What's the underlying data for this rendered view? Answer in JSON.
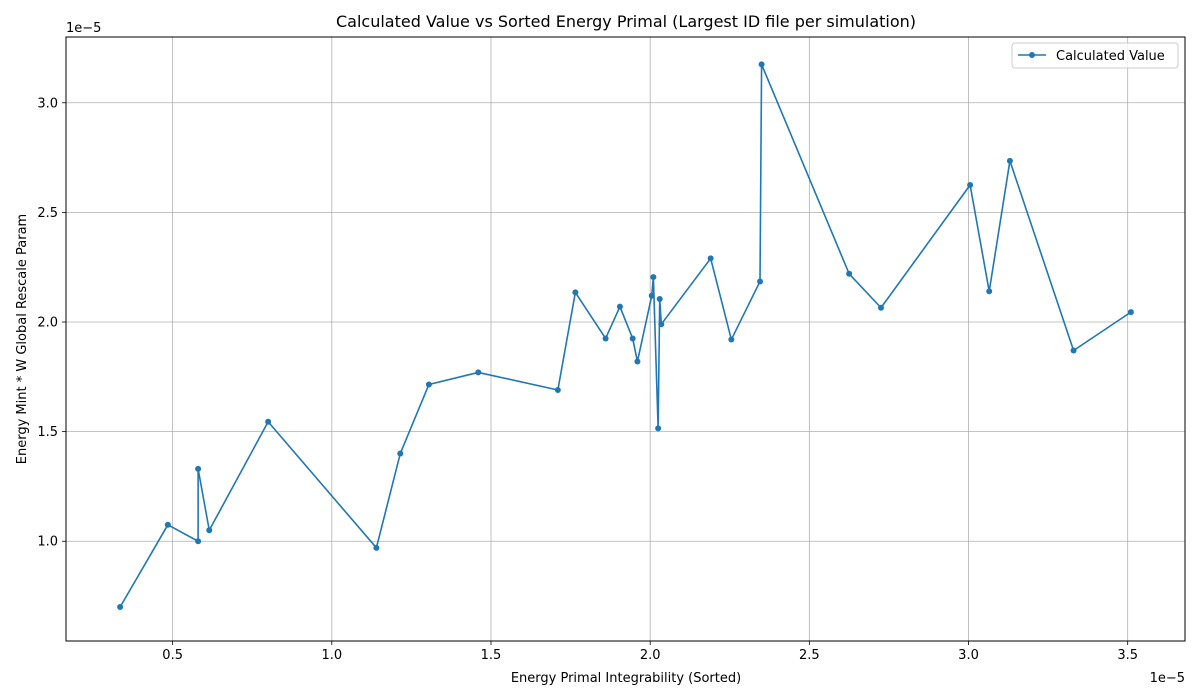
{
  "colors": {
    "series": "#1f77b4",
    "grid": "#b0b0b0",
    "axis": "#000000",
    "background": "#ffffff"
  },
  "chart_data": {
    "type": "line",
    "title": "Calculated Value vs Sorted Energy Primal (Largest ID file per simulation)",
    "xlabel": "Energy Primal Integrability (Sorted)",
    "ylabel": "Energy Mint * W Global Rescale Param",
    "x_offset_label": "1e−5",
    "y_offset_label": "1e−5",
    "xlim": [
      0.165,
      3.68
    ],
    "ylim": [
      0.545,
      3.3
    ],
    "xticks": [
      0.5,
      1.0,
      1.5,
      2.0,
      2.5,
      3.0,
      3.5
    ],
    "xtick_labels": [
      "0.5",
      "1.0",
      "1.5",
      "2.0",
      "2.5",
      "3.0",
      "3.5"
    ],
    "yticks": [
      1.0,
      1.5,
      2.0,
      2.5,
      3.0
    ],
    "ytick_labels": [
      "1.0",
      "1.5",
      "2.0",
      "2.5",
      "3.0"
    ],
    "grid": true,
    "legend_position": "top-right",
    "marker": "circle",
    "series": [
      {
        "name": "Calculated Value",
        "x": [
          0.335,
          0.485,
          0.58,
          0.58,
          0.615,
          0.8,
          1.14,
          1.215,
          1.305,
          1.46,
          1.71,
          1.765,
          1.86,
          1.905,
          1.945,
          1.96,
          2.005,
          2.01,
          2.025,
          2.03,
          2.035,
          2.19,
          2.255,
          2.345,
          2.35,
          2.625,
          2.725,
          3.005,
          3.065,
          3.13,
          3.33,
          3.51
        ],
        "y": [
          0.7,
          1.075,
          1.0,
          1.33,
          1.05,
          1.545,
          0.97,
          1.4,
          1.715,
          1.77,
          1.69,
          2.135,
          1.925,
          2.07,
          1.925,
          1.82,
          2.12,
          2.205,
          1.515,
          2.105,
          1.99,
          2.29,
          1.92,
          2.185,
          3.175,
          2.22,
          2.065,
          2.625,
          2.14,
          2.735,
          1.87,
          2.045
        ]
      }
    ]
  }
}
